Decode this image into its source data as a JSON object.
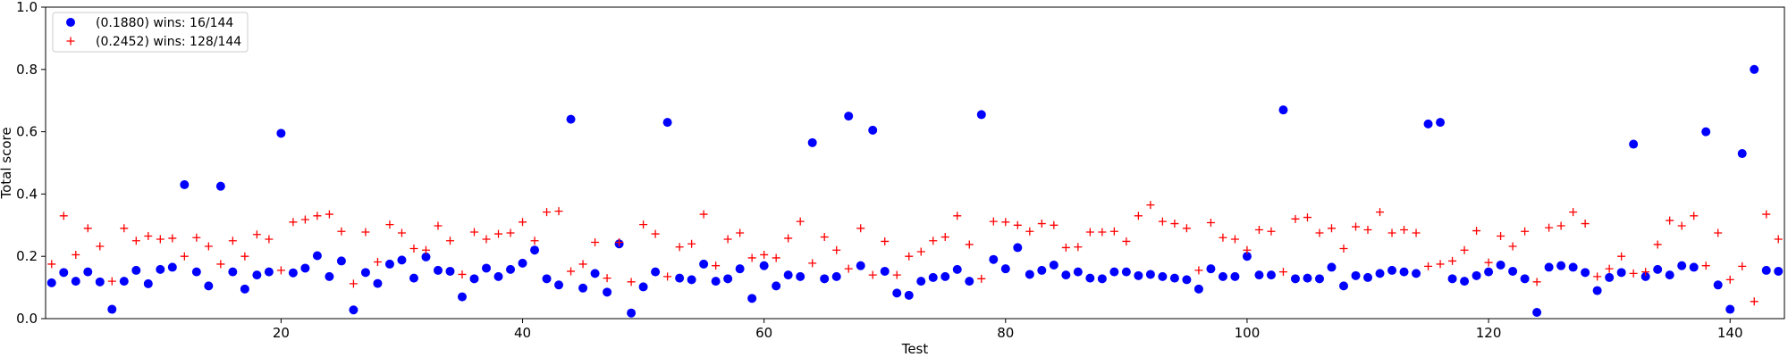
{
  "chart_data": {
    "type": "scatter",
    "xlabel": "Test",
    "ylabel": "Total score",
    "xlim": [
      0.5,
      144.5
    ],
    "ylim": [
      0.0,
      1.0
    ],
    "xticks": [
      20,
      40,
      60,
      80,
      100,
      120,
      140
    ],
    "yticks": [
      0.0,
      0.2,
      0.4,
      0.6,
      0.8,
      1.0
    ],
    "xtick_labels": [
      "20",
      "40",
      "60",
      "80",
      "100",
      "120",
      "140"
    ],
    "ytick_labels": [
      "0.0",
      "0.2",
      "0.4",
      "0.6",
      "0.8",
      "1.0"
    ],
    "grid": false,
    "legend_position": "top-left",
    "x": [
      1,
      2,
      3,
      4,
      5,
      6,
      7,
      8,
      9,
      10,
      11,
      12,
      13,
      14,
      15,
      16,
      17,
      18,
      19,
      20,
      21,
      22,
      23,
      24,
      25,
      26,
      27,
      28,
      29,
      30,
      31,
      32,
      33,
      34,
      35,
      36,
      37,
      38,
      39,
      40,
      41,
      42,
      43,
      44,
      45,
      46,
      47,
      48,
      49,
      50,
      51,
      52,
      53,
      54,
      55,
      56,
      57,
      58,
      59,
      60,
      61,
      62,
      63,
      64,
      65,
      66,
      67,
      68,
      69,
      70,
      71,
      72,
      73,
      74,
      75,
      76,
      77,
      78,
      79,
      80,
      81,
      82,
      83,
      84,
      85,
      86,
      87,
      88,
      89,
      90,
      91,
      92,
      93,
      94,
      95,
      96,
      97,
      98,
      99,
      100,
      101,
      102,
      103,
      104,
      105,
      106,
      107,
      108,
      109,
      110,
      111,
      112,
      113,
      114,
      115,
      116,
      117,
      118,
      119,
      120,
      121,
      122,
      123,
      124,
      125,
      126,
      127,
      128,
      129,
      130,
      131,
      132,
      133,
      134,
      135,
      136,
      137,
      138,
      139,
      140,
      141,
      142,
      143,
      144
    ],
    "series": [
      {
        "name": "(0.1880) wins: 16/144",
        "marker": "circle",
        "color": "#0000ff",
        "values": [
          0.115,
          0.148,
          0.12,
          0.15,
          0.118,
          0.03,
          0.12,
          0.155,
          0.112,
          0.158,
          0.165,
          0.43,
          0.15,
          0.105,
          0.425,
          0.15,
          0.095,
          0.14,
          0.15,
          0.595,
          0.147,
          0.162,
          0.202,
          0.135,
          0.185,
          0.028,
          0.148,
          0.113,
          0.175,
          0.188,
          0.13,
          0.198,
          0.155,
          0.152,
          0.07,
          0.128,
          0.162,
          0.135,
          0.158,
          0.178,
          0.22,
          0.128,
          0.108,
          0.64,
          0.098,
          0.145,
          0.085,
          0.24,
          0.018,
          0.102,
          0.15,
          0.63,
          0.13,
          0.125,
          0.175,
          0.12,
          0.128,
          0.16,
          0.065,
          0.17,
          0.105,
          0.14,
          0.135,
          0.565,
          0.128,
          0.135,
          0.65,
          0.17,
          0.605,
          0.152,
          0.082,
          0.075,
          0.12,
          0.132,
          0.135,
          0.158,
          0.12,
          0.655,
          0.19,
          0.16,
          0.228,
          0.142,
          0.155,
          0.172,
          0.14,
          0.15,
          0.13,
          0.128,
          0.15,
          0.15,
          0.138,
          0.142,
          0.135,
          0.13,
          0.125,
          0.095,
          0.16,
          0.135,
          0.135,
          0.2,
          0.14,
          0.14,
          0.67,
          0.128,
          0.13,
          0.128,
          0.165,
          0.105,
          0.138,
          0.132,
          0.145,
          0.155,
          0.15,
          0.145,
          0.625,
          0.63,
          0.128,
          0.12,
          0.138,
          0.15,
          0.172,
          0.152,
          0.128,
          0.02,
          0.165,
          0.17,
          0.165,
          0.148,
          0.09,
          0.132,
          0.148,
          0.56,
          0.135,
          0.158,
          0.14,
          0.17,
          0.165,
          0.6,
          0.108,
          0.03,
          0.53,
          0.8,
          0.155,
          0.152
        ]
      },
      {
        "name": "(0.2452) wins: 128/144",
        "marker": "plus",
        "color": "#ff0000",
        "values": [
          0.175,
          0.33,
          0.205,
          0.29,
          0.232,
          0.12,
          0.29,
          0.25,
          0.265,
          0.255,
          0.258,
          0.2,
          0.26,
          0.232,
          0.175,
          0.25,
          0.2,
          0.27,
          0.255,
          0.155,
          0.31,
          0.318,
          0.33,
          0.335,
          0.28,
          0.112,
          0.278,
          0.182,
          0.302,
          0.275,
          0.225,
          0.22,
          0.298,
          0.25,
          0.142,
          0.278,
          0.255,
          0.272,
          0.275,
          0.31,
          0.25,
          0.342,
          0.345,
          0.152,
          0.175,
          0.245,
          0.13,
          0.245,
          0.118,
          0.302,
          0.272,
          0.135,
          0.23,
          0.24,
          0.335,
          0.17,
          0.255,
          0.275,
          0.195,
          0.205,
          0.195,
          0.258,
          0.312,
          0.178,
          0.262,
          0.22,
          0.16,
          0.29,
          0.14,
          0.248,
          0.14,
          0.2,
          0.215,
          0.25,
          0.262,
          0.33,
          0.238,
          0.128,
          0.312,
          0.31,
          0.3,
          0.28,
          0.305,
          0.3,
          0.228,
          0.23,
          0.278,
          0.278,
          0.28,
          0.248,
          0.33,
          0.365,
          0.312,
          0.305,
          0.29,
          0.155,
          0.308,
          0.26,
          0.255,
          0.22,
          0.285,
          0.28,
          0.15,
          0.32,
          0.325,
          0.275,
          0.29,
          0.225,
          0.295,
          0.285,
          0.342,
          0.275,
          0.285,
          0.275,
          0.168,
          0.175,
          0.185,
          0.22,
          0.282,
          0.18,
          0.265,
          0.232,
          0.28,
          0.118,
          0.292,
          0.298,
          0.342,
          0.305,
          0.135,
          0.16,
          0.2,
          0.145,
          0.15,
          0.238,
          0.315,
          0.298,
          0.33,
          0.17,
          0.275,
          0.125,
          0.168,
          0.055,
          0.335,
          0.255
        ]
      }
    ]
  }
}
